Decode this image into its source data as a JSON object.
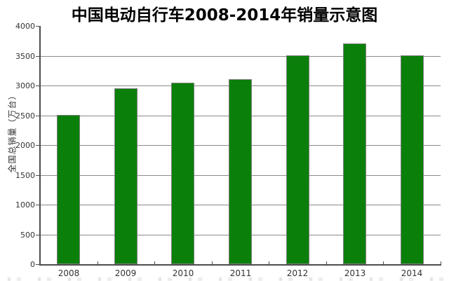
{
  "title": "中国电动自行车2008-2014年销量示意图",
  "chart_data": {
    "type": "bar",
    "title": "中国电动自行车2008-2014年销量示意图",
    "categories": [
      "2008",
      "2009",
      "2010",
      "2011",
      "2012",
      "2013",
      "2014"
    ],
    "values": [
      2500,
      2950,
      3050,
      3100,
      3500,
      3700,
      3500
    ],
    "xlabel": "",
    "ylabel": "全国总销量（万台）",
    "ylim": [
      0,
      4000
    ],
    "yticks": [
      0,
      500,
      1000,
      1500,
      2000,
      2500,
      3000,
      3500,
      4000
    ],
    "grid": true,
    "legend": "none",
    "colors": {
      "bar_fill": "#0a800a",
      "bar_border": "#7f7f7f",
      "gridline": "#8a8a8a",
      "axis": "#4c4c4c",
      "tick_text": "#333333",
      "title_text": "#000000",
      "background": "#ffffff"
    }
  }
}
